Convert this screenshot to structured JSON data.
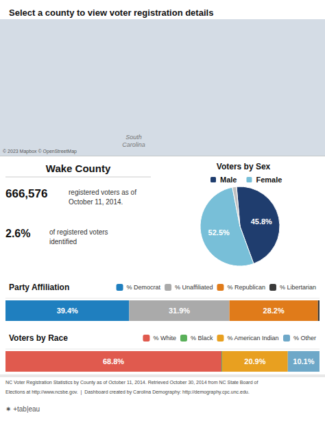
{
  "title": "Select a county to view voter registration details",
  "annotations": [
    "Wake County",
    "666,576",
    "registered voters as of\nOctober 11, 2014.",
    "2.6%",
    "of registered voters\nidentified",
    "South\nCarolina",
    "© 2023 Mapbox © OpenStreetMap",
    "NC Voter Registration Statistics by County as of October 11, 2014. Retrieved October 30, 2014 from NC State Board of",
    "Elections at http://www.ncsbe.gov.  |  Dashboard created by Carolina Demography: http://demography.cpc.unc.edu.",
    "✷ +tab|eau"
  ],
  "chart_data": [
    {
      "type": "pie",
      "title": "Voters by Sex",
      "categories": [
        "Male",
        "Female",
        null
      ],
      "values": [
        45.8,
        52.5,
        1.7
      ],
      "value_labels": [
        "45.8%",
        "52.5%",
        null
      ],
      "colors": [
        "#1f3d6e",
        "#78bfd8",
        "#c0c0c0"
      ],
      "data_labels": true
    },
    {
      "type": "bar",
      "title": "Party Affiliation",
      "orientation": "horizontal",
      "stacked": true,
      "legend": "top right",
      "tick_labels": false,
      "xlim": [
        0,
        100
      ],
      "data_labels": true,
      "series": [
        {
          "name": "% Democrat",
          "color": "#1f7fbf",
          "values": [
            39.4
          ],
          "value_labels": [
            "39.4%"
          ]
        },
        {
          "name": "% Unaffiliated",
          "color": "#aaaaaa",
          "values": [
            31.9
          ],
          "value_labels": [
            "31.9%"
          ]
        },
        {
          "name": "% Republican",
          "color": "#e07b1a",
          "values": [
            28.2
          ],
          "value_labels": [
            "28.2%"
          ]
        },
        {
          "name": "% Libertarian",
          "color": "#3a3a3a",
          "values": [
            0.5
          ],
          "value_labels": [
            null
          ]
        }
      ]
    },
    {
      "type": "bar",
      "title": "Voters by Race",
      "orientation": "horizontal",
      "stacked": true,
      "legend": "top right",
      "tick_labels": false,
      "xlim": [
        0,
        100
      ],
      "data_labels": true,
      "series": [
        {
          "name": "% White",
          "color": "#e05a4e",
          "values": [
            68.8
          ],
          "value_labels": [
            "68.8%"
          ]
        },
        {
          "name": "% Black",
          "color": "#5ab05a",
          "values": [
            0.2
          ],
          "value_labels": [
            null
          ]
        },
        {
          "name": "% American Indian",
          "color": "#e8a020",
          "values": [
            20.9
          ],
          "value_labels": [
            "20.9%"
          ]
        },
        {
          "name": "% Other",
          "color": "#6ea8c8",
          "values": [
            10.1
          ],
          "value_labels": [
            "10.1%"
          ]
        }
      ]
    }
  ]
}
